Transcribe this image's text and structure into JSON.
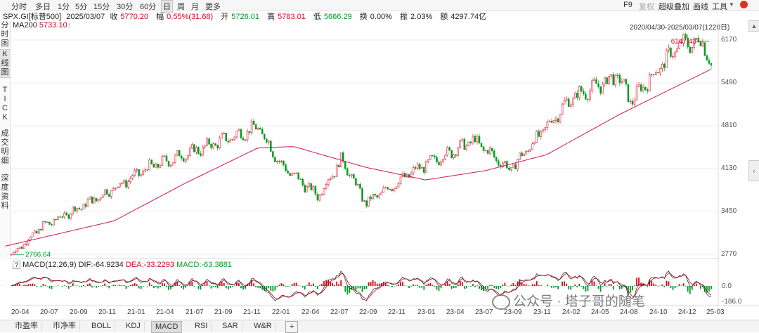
{
  "toolbar": {
    "periods": [
      "分时",
      "多日",
      "1分",
      "5分",
      "15分",
      "30分",
      "60分",
      "日",
      "周",
      "月",
      "更多"
    ],
    "active_period": "日",
    "right_items": [
      "F9",
      "复权",
      "超级叠加",
      "画线",
      "工具"
    ],
    "restore_label": "F9",
    "fuquan_label": "复权",
    "overlay_label": "超级叠加",
    "draw_label": "画线",
    "tools_label": "工具",
    "chevron_icon": "chevron-down-icon",
    "circle_icon": "record-icon"
  },
  "info": {
    "symbol": "SPX.GI[标普500]",
    "date": "2025/03/07",
    "close_label": "收",
    "close": "5770.20",
    "change_label": "幅",
    "change": "0.55%(31.68)",
    "open_label": "开",
    "open": "5726.01",
    "high_label": "高",
    "high": "5783.01",
    "low_label": "低",
    "low": "5666.29",
    "turnover_label": "换",
    "turnover": "0.00%",
    "amplitude_label": "振",
    "amplitude": "2.03%",
    "amount_label": "额",
    "amount": "4297.74亿"
  },
  "ma": {
    "label": "MA200",
    "value": "5733.10"
  },
  "range_label": "2020/04/30-2025/03/07(1220日)",
  "left_tabs": [
    {
      "label": "分时图"
    },
    {
      "label": "K线图"
    },
    {
      "label": "TICK"
    },
    {
      "label": "成交明细"
    },
    {
      "label": "深度资料"
    }
  ],
  "price_axis": [
    "6170",
    "5490",
    "4810",
    "4130",
    "3450",
    "2770"
  ],
  "annotations": {
    "high": "6147.43",
    "low": "2766.64"
  },
  "macd": {
    "help": "?",
    "label": "MACD(12,26,9)",
    "dif_label": "DIF:",
    "dif": "-64.9234",
    "dea_label": "DEA:",
    "dea": "-33.2293",
    "macd_label": "MACD:",
    "macd": "-63.3881",
    "axis": [
      "0.0",
      "-186.0"
    ]
  },
  "x_dates": [
    "20-04",
    "20-07",
    "20-09",
    "20-11",
    "21-01",
    "21-04",
    "21-07",
    "21-09",
    "21-11",
    "22-01",
    "22-04",
    "22-07",
    "22-09",
    "22-11",
    "23-01",
    "23-04",
    "23-07",
    "23-09",
    "23-11",
    "24-02",
    "24-05",
    "24-08",
    "24-10",
    "24-12",
    "25-03"
  ],
  "bottom_tabs": [
    "市盈率",
    "市净率",
    "BOLL",
    "KDJ",
    "MACD",
    "RSI",
    "SAR",
    "W&R",
    "+"
  ],
  "active_bottom_tab": "MACD",
  "watermark": "公众号 · 塔子哥的随笔",
  "colors": {
    "up": "#e0001b",
    "down": "#009a20",
    "ma200": "#d4145a",
    "dif": "#333333",
    "dea": "#b0001e"
  },
  "chart_data": {
    "type": "candlestick",
    "title": "SPX.GI 标普500 日K",
    "ylim": [
      2770,
      6170
    ],
    "x_range": [
      "2020-04-30",
      "2025-03-07"
    ],
    "key_points": [
      {
        "date": "2020-04-30",
        "value": 2766.64
      },
      {
        "date": "2020-07",
        "value": 3200
      },
      {
        "date": "2020-11",
        "value": 3600
      },
      {
        "date": "2021-04",
        "value": 4150
      },
      {
        "date": "2021-09",
        "value": 4500
      },
      {
        "date": "2022-01",
        "value": 4790
      },
      {
        "date": "2022-03",
        "value": 4180
      },
      {
        "date": "2022-06",
        "value": 3700
      },
      {
        "date": "2022-08",
        "value": 4280
      },
      {
        "date": "2022-10",
        "value": 3580
      },
      {
        "date": "2023-02",
        "value": 4100
      },
      {
        "date": "2023-07",
        "value": 4580
      },
      {
        "date": "2023-10",
        "value": 4110
      },
      {
        "date": "2024-03",
        "value": 5240
      },
      {
        "date": "2024-07",
        "value": 5600
      },
      {
        "date": "2024-08",
        "value": 5200
      },
      {
        "date": "2024-12",
        "value": 6090
      },
      {
        "date": "2025-02",
        "value": 6147.43
      },
      {
        "date": "2025-03-07",
        "value": 5770.2
      }
    ],
    "ma200_points": [
      {
        "date": "2020-04",
        "value": 2900
      },
      {
        "date": "2021-01",
        "value": 3300
      },
      {
        "date": "2021-07",
        "value": 3900
      },
      {
        "date": "2022-01",
        "value": 4460
      },
      {
        "date": "2022-04",
        "value": 4480
      },
      {
        "date": "2022-10",
        "value": 4150
      },
      {
        "date": "2023-03",
        "value": 3950
      },
      {
        "date": "2023-08",
        "value": 4100
      },
      {
        "date": "2024-01",
        "value": 4350
      },
      {
        "date": "2024-07",
        "value": 4980
      },
      {
        "date": "2025-03",
        "value": 5733.1
      }
    ]
  }
}
